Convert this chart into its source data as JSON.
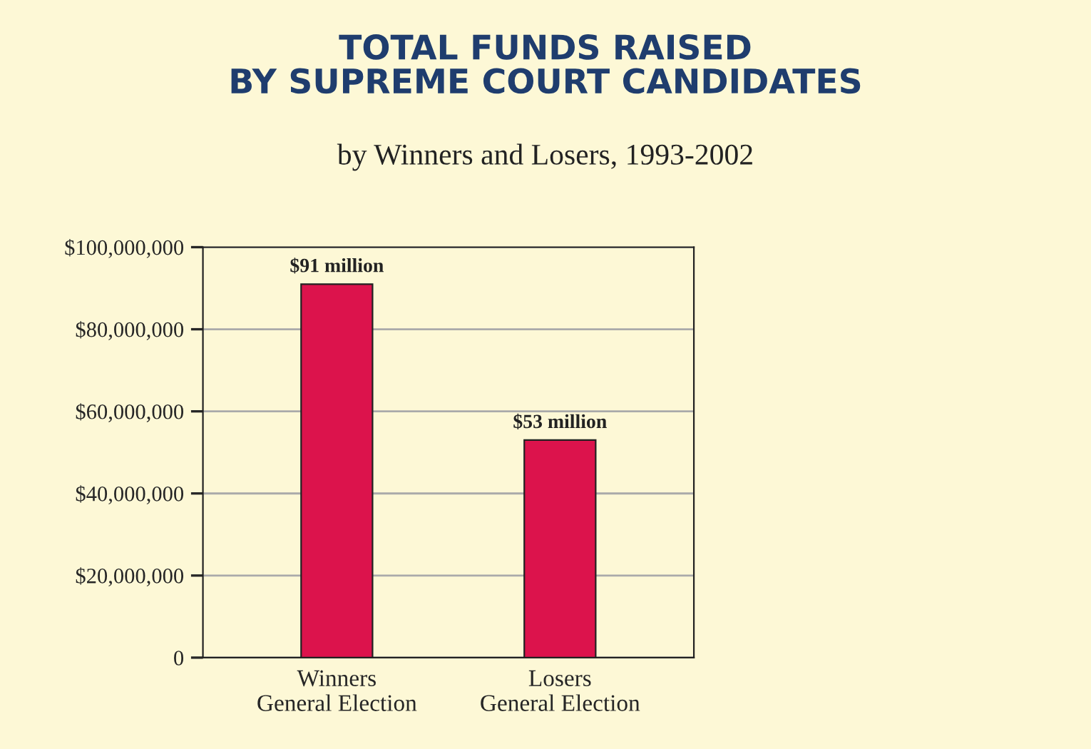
{
  "chart_data": {
    "type": "bar",
    "title": "TOTAL FUNDS RAISED\nBY SUPREME COURT CANDIDATES",
    "subtitle": "by Winners and Losers, 1993-2002",
    "categories": [
      "Winners\nGeneral Election",
      "Losers\nGeneral Election"
    ],
    "values": [
      91000000,
      53000000
    ],
    "value_labels": [
      "$91 million",
      "$53 million"
    ],
    "color": "#dc134c",
    "ylim": [
      0,
      100000000
    ],
    "yticks": [
      {
        "value": 0,
        "label": "0"
      },
      {
        "value": 20000000,
        "label": "$20,000,000"
      },
      {
        "value": 40000000,
        "label": "$40,000,000"
      },
      {
        "value": 60000000,
        "label": "$60,000,000"
      },
      {
        "value": 80000000,
        "label": "$80,000,000"
      },
      {
        "value": 100000000,
        "label": "$100,000,000"
      }
    ],
    "grid": "y",
    "legend": false
  }
}
